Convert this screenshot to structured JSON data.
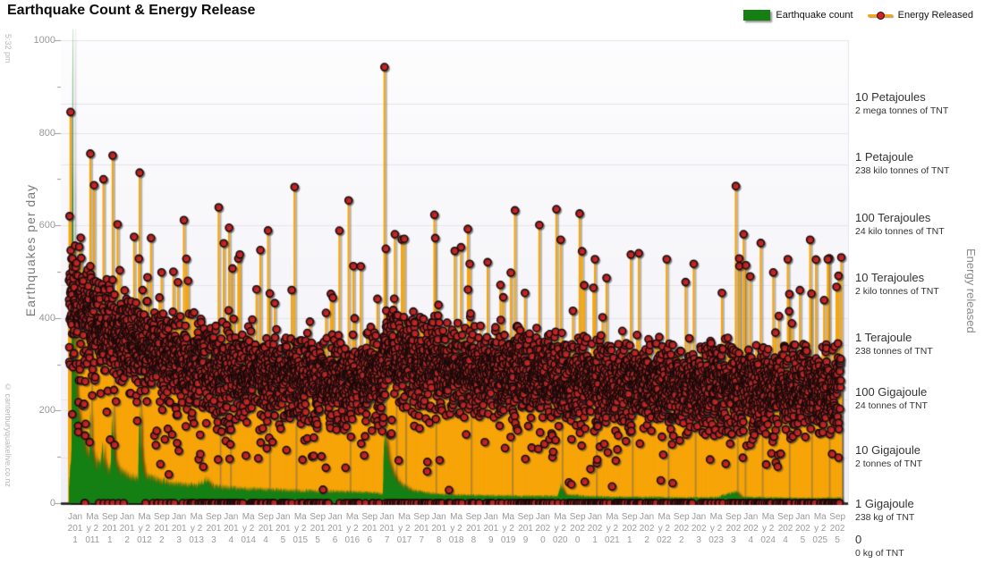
{
  "title": "Earthquake Count & Energy Release",
  "legend": {
    "count_label": "Earthquake count",
    "energy_label": "Energy Released"
  },
  "watermarks": {
    "time": "5:32 pm",
    "site": "© canterburyquakelive.co.nz"
  },
  "left_axis": {
    "title": "Earthquakes per day",
    "min": 0,
    "max": 1000,
    "major_ticks": [
      0,
      200,
      400,
      600,
      800,
      1000
    ],
    "minor_step": 100
  },
  "right_axis": {
    "title": "Energy released",
    "items": [
      {
        "main": "10 Petajoules",
        "sub": "2 mega tonnes of TNT"
      },
      {
        "main": "1 Petajoule",
        "sub": "238 kilo tonnes of TNT"
      },
      {
        "main": "100 Terajoules",
        "sub": "24 kilo tonnes of TNT"
      },
      {
        "main": "10 Terajoules",
        "sub": "2 kilo tonnes of TNT"
      },
      {
        "main": "1 Terajoule",
        "sub": "238 tonnes of TNT"
      },
      {
        "main": "100 Gigajoule",
        "sub": "24 tonnes of TNT"
      },
      {
        "main": "10 Gigajoule",
        "sub": "2 tonnes of TNT"
      },
      {
        "main": "1 Gigajoule",
        "sub": "238 kg of TNT"
      },
      {
        "main": "0",
        "sub": "0 kg of TNT"
      }
    ]
  },
  "chart_data": {
    "type": "mixed",
    "title": "Earthquake Count & Energy Release",
    "x_domain": [
      2010.95,
      2025.8
    ],
    "x_tick_labels": [
      "Jan 2011",
      "May 2011",
      "Sep 2011",
      "Jan 2012",
      "May 2012",
      "Sep 2012",
      "Jan 2013",
      "May 2013",
      "Sep 2013",
      "Jan 2014",
      "May 2014",
      "Sep 2014",
      "Jan 2015",
      "May 2015",
      "Sep 2015",
      "Jan 2016",
      "May 2016",
      "Sep 2016",
      "Jan 2017",
      "May 2017",
      "Sep 2017",
      "Jan 2018",
      "May 2018",
      "Sep 2018",
      "Jan 2019",
      "May 2019",
      "Sep 2019",
      "Jan 2020",
      "May 2020",
      "Sep 2020",
      "Jan 2021",
      "May 2021",
      "Sep 2021",
      "Jan 2022",
      "May 2022",
      "Sep 2022",
      "Jan 2023",
      "May 2023",
      "Sep 2023",
      "Jan 2024",
      "May 2024",
      "Sep 2024",
      "Jan 2025",
      "May 2025",
      "Sep 2025"
    ],
    "ylim_left": [
      0,
      1000
    ],
    "grid": true,
    "legend_position": "top-right",
    "seed": 42,
    "points_per_year": 365,
    "series": [
      {
        "name": "Earthquake count",
        "kind": "area",
        "color": "#148014",
        "anchors": [
          [
            2010.95,
            40
          ],
          [
            2011.0,
            120
          ],
          [
            2011.02,
            940
          ],
          [
            2011.04,
            500
          ],
          [
            2011.06,
            330
          ],
          [
            2011.09,
            250
          ],
          [
            2011.13,
            200
          ],
          [
            2011.18,
            160
          ],
          [
            2011.24,
            130
          ],
          [
            2011.3,
            108
          ],
          [
            2011.34,
            100
          ],
          [
            2011.36,
            190
          ],
          [
            2011.38,
            110
          ],
          [
            2011.45,
            88
          ],
          [
            2011.55,
            80
          ],
          [
            2011.6,
            115
          ],
          [
            2011.64,
            78
          ],
          [
            2011.75,
            72
          ],
          [
            2011.79,
            215
          ],
          [
            2011.82,
            95
          ],
          [
            2011.9,
            70
          ],
          [
            2012.0,
            62
          ],
          [
            2012.15,
            56
          ],
          [
            2012.28,
            52
          ],
          [
            2012.31,
            235
          ],
          [
            2012.34,
            100
          ],
          [
            2012.4,
            60
          ],
          [
            2012.55,
            52
          ],
          [
            2012.75,
            46
          ],
          [
            2012.95,
            42
          ],
          [
            2013.15,
            40
          ],
          [
            2013.4,
            38
          ],
          [
            2013.6,
            52
          ],
          [
            2013.7,
            36
          ],
          [
            2014.0,
            33
          ],
          [
            2014.4,
            30
          ],
          [
            2014.9,
            28
          ],
          [
            2015.4,
            26
          ],
          [
            2015.9,
            25
          ],
          [
            2016.4,
            24
          ],
          [
            2016.8,
            22
          ],
          [
            2016.99,
            20
          ],
          [
            2017.02,
            175
          ],
          [
            2017.06,
            120
          ],
          [
            2017.12,
            85
          ],
          [
            2017.22,
            55
          ],
          [
            2017.35,
            38
          ],
          [
            2017.55,
            28
          ],
          [
            2017.8,
            22
          ],
          [
            2018.1,
            19
          ],
          [
            2018.6,
            17
          ],
          [
            2019.1,
            16
          ],
          [
            2019.6,
            15
          ],
          [
            2020.35,
            15
          ],
          [
            2020.41,
            38
          ],
          [
            2020.5,
            18
          ],
          [
            2021.0,
            14
          ],
          [
            2021.6,
            13
          ],
          [
            2022.2,
            13
          ],
          [
            2022.8,
            12
          ],
          [
            2023.4,
            12
          ],
          [
            2023.78,
            26
          ],
          [
            2023.9,
            13
          ],
          [
            2024.4,
            12
          ],
          [
            2024.9,
            11
          ],
          [
            2025.4,
            11
          ],
          [
            2025.8,
            12
          ]
        ]
      },
      {
        "name": "Energy Released",
        "kind": "stem-scatter",
        "stem_color": "#F7A50A",
        "dot_color": "#D32121",
        "dot_stroke": "#1c0a0a",
        "band_anchors": [
          [
            2010.95,
            430,
            95
          ],
          [
            2011.3,
            410,
            95
          ],
          [
            2011.7,
            385,
            90
          ],
          [
            2012.0,
            355,
            88
          ],
          [
            2012.5,
            330,
            85
          ],
          [
            2013.0,
            308,
            82
          ],
          [
            2013.5,
            295,
            80
          ],
          [
            2014.0,
            285,
            78
          ],
          [
            2014.5,
            278,
            78
          ],
          [
            2015.0,
            272,
            76
          ],
          [
            2015.5,
            268,
            76
          ],
          [
            2016.0,
            265,
            76
          ],
          [
            2016.5,
            262,
            76
          ],
          [
            2016.95,
            268,
            78
          ],
          [
            2017.05,
            340,
            85
          ],
          [
            2017.3,
            325,
            82
          ],
          [
            2017.7,
            308,
            80
          ],
          [
            2018.0,
            298,
            80
          ],
          [
            2018.5,
            290,
            78
          ],
          [
            2019.0,
            282,
            78
          ],
          [
            2019.5,
            276,
            76
          ],
          [
            2020.0,
            272,
            76
          ],
          [
            2020.5,
            268,
            76
          ],
          [
            2021.0,
            264,
            75
          ],
          [
            2021.5,
            260,
            75
          ],
          [
            2022.0,
            257,
            75
          ],
          [
            2022.5,
            254,
            75
          ],
          [
            2023.0,
            252,
            75
          ],
          [
            2023.5,
            250,
            75
          ],
          [
            2024.0,
            250,
            75
          ],
          [
            2024.5,
            248,
            75
          ],
          [
            2025.0,
            247,
            75
          ],
          [
            2025.8,
            250,
            75
          ]
        ],
        "spikes": [
          [
            2010.96,
            620
          ],
          [
            2010.98,
            845
          ],
          [
            2011.36,
            755
          ],
          [
            2011.79,
            751
          ],
          [
            2012.31,
            714
          ],
          [
            2013.83,
            639
          ],
          [
            2014.03,
            595
          ],
          [
            2014.78,
            589
          ],
          [
            2015.29,
            683
          ],
          [
            2016.33,
            654
          ],
          [
            2017.02,
            942
          ],
          [
            2017.22,
            581
          ],
          [
            2017.4,
            571
          ],
          [
            2017.98,
            623
          ],
          [
            2018.66,
            517
          ],
          [
            2019.45,
            498
          ],
          [
            2020.41,
            569
          ],
          [
            2021.07,
            527
          ],
          [
            2021.76,
            537
          ],
          [
            2022.45,
            527
          ],
          [
            2022.97,
            517
          ],
          [
            2023.78,
            685
          ],
          [
            2023.93,
            581
          ],
          [
            2024.26,
            562
          ],
          [
            2024.78,
            527
          ],
          [
            2025.21,
            569
          ],
          [
            2025.55,
            527
          ],
          [
            2025.81,
            531
          ]
        ],
        "zero_fraction": 0.085,
        "high_outlier_chance": 0.02,
        "low_outlier_chance": 0.08
      }
    ],
    "style": {
      "grid_color": "#e4e4ea",
      "axis_line_color": "#1a1a1a",
      "plot_bg_top": "#fdfdfe",
      "plot_bg_bottom": "#f0f0f7"
    }
  }
}
